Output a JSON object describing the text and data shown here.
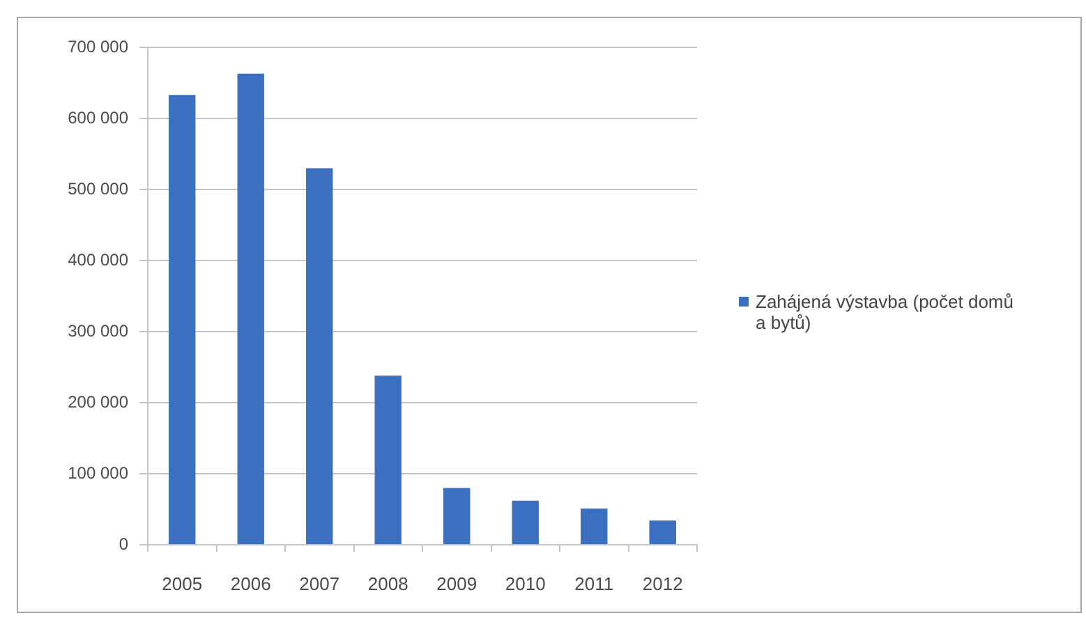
{
  "chart_data": {
    "type": "bar",
    "categories": [
      "2005",
      "2006",
      "2007",
      "2008",
      "2009",
      "2010",
      "2011",
      "2012"
    ],
    "series": [
      {
        "name": "Zahájená výstavba (počet domů a bytů)",
        "color": "#3d6fc0",
        "values": [
          633000,
          663000,
          530000,
          238000,
          80000,
          62000,
          51000,
          34000
        ]
      }
    ],
    "ylim": [
      0,
      700000
    ],
    "yticks": [
      0,
      {
        "value": 100000,
        "label": "100 000"
      },
      {
        "value": 200000,
        "label": "200 000"
      },
      {
        "value": 300000,
        "label": "300 000"
      },
      {
        "value": 400000,
        "label": "400 000"
      },
      {
        "value": 500000,
        "label": "500 000"
      },
      {
        "value": 600000,
        "label": "600 000"
      },
      {
        "value": 700000,
        "label": "700 000"
      }
    ],
    "grid": "y",
    "legend": "right"
  }
}
